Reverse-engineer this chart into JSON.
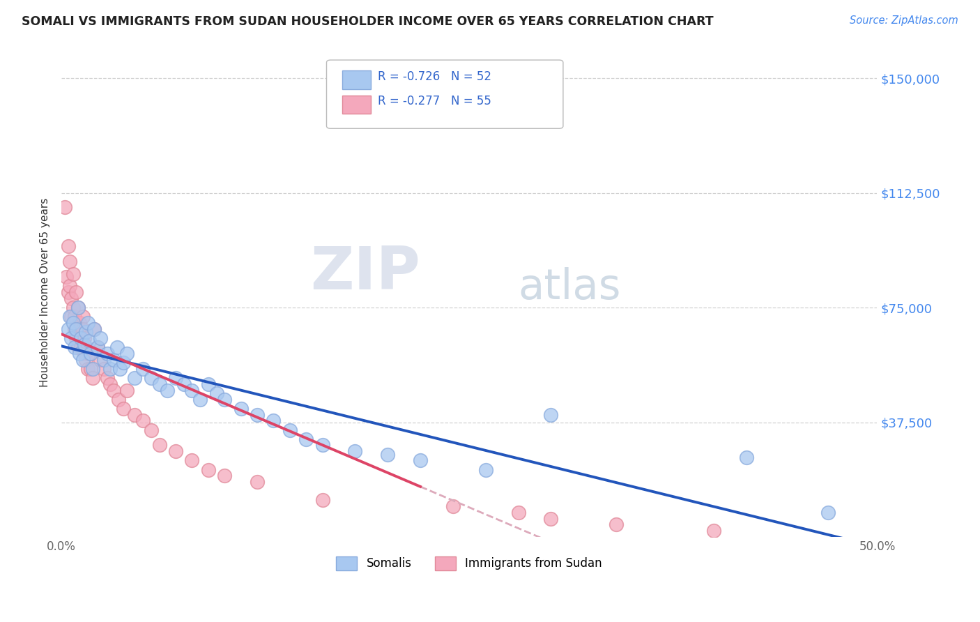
{
  "title": "SOMALI VS IMMIGRANTS FROM SUDAN HOUSEHOLDER INCOME OVER 65 YEARS CORRELATION CHART",
  "source": "Source: ZipAtlas.com",
  "ylabel": "Householder Income Over 65 years",
  "y_tick_labels": [
    "$150,000",
    "$112,500",
    "$75,000",
    "$37,500"
  ],
  "y_tick_values": [
    150000,
    112500,
    75000,
    37500
  ],
  "ylim": [
    0,
    160000
  ],
  "xlim": [
    0.0,
    0.5
  ],
  "legend_label1": "Somalis",
  "legend_label2": "Immigrants from Sudan",
  "r1": "-0.726",
  "n1": "52",
  "r2": "-0.277",
  "n2": "55",
  "watermark_zip": "ZIP",
  "watermark_atlas": "atlas",
  "somali_color": "#a8c8f0",
  "sudan_color": "#f4a8bc",
  "somali_edge_color": "#88aadd",
  "sudan_edge_color": "#e08898",
  "somali_line_color": "#2255bb",
  "sudan_line_color": "#dd4466",
  "sudan_dash_color": "#ddaabb",
  "somali_x": [
    0.004,
    0.005,
    0.006,
    0.007,
    0.008,
    0.009,
    0.01,
    0.011,
    0.012,
    0.013,
    0.014,
    0.015,
    0.016,
    0.017,
    0.018,
    0.019,
    0.02,
    0.022,
    0.024,
    0.026,
    0.028,
    0.03,
    0.032,
    0.034,
    0.036,
    0.038,
    0.04,
    0.045,
    0.05,
    0.055,
    0.06,
    0.065,
    0.07,
    0.075,
    0.08,
    0.085,
    0.09,
    0.095,
    0.1,
    0.11,
    0.12,
    0.13,
    0.14,
    0.15,
    0.16,
    0.18,
    0.2,
    0.22,
    0.26,
    0.3,
    0.42,
    0.47
  ],
  "somali_y": [
    68000,
    72000,
    65000,
    70000,
    62000,
    68000,
    75000,
    60000,
    65000,
    58000,
    63000,
    67000,
    70000,
    64000,
    60000,
    55000,
    68000,
    62000,
    65000,
    58000,
    60000,
    55000,
    58000,
    62000,
    55000,
    57000,
    60000,
    52000,
    55000,
    52000,
    50000,
    48000,
    52000,
    50000,
    48000,
    45000,
    50000,
    47000,
    45000,
    42000,
    40000,
    38000,
    35000,
    32000,
    30000,
    28000,
    27000,
    25000,
    22000,
    40000,
    26000,
    8000
  ],
  "sudan_x": [
    0.002,
    0.003,
    0.004,
    0.004,
    0.005,
    0.005,
    0.006,
    0.006,
    0.007,
    0.007,
    0.008,
    0.008,
    0.009,
    0.009,
    0.01,
    0.01,
    0.011,
    0.011,
    0.012,
    0.012,
    0.013,
    0.013,
    0.014,
    0.014,
    0.015,
    0.015,
    0.016,
    0.017,
    0.018,
    0.019,
    0.02,
    0.022,
    0.024,
    0.026,
    0.028,
    0.03,
    0.032,
    0.035,
    0.038,
    0.04,
    0.045,
    0.05,
    0.055,
    0.06,
    0.07,
    0.08,
    0.09,
    0.1,
    0.12,
    0.16,
    0.24,
    0.28,
    0.3,
    0.34,
    0.4
  ],
  "sudan_y": [
    108000,
    85000,
    95000,
    80000,
    90000,
    82000,
    78000,
    72000,
    86000,
    75000,
    68000,
    72000,
    65000,
    80000,
    75000,
    62000,
    70000,
    68000,
    65000,
    62000,
    72000,
    68000,
    65000,
    60000,
    62000,
    58000,
    55000,
    60000,
    55000,
    52000,
    68000,
    62000,
    58000,
    55000,
    52000,
    50000,
    48000,
    45000,
    42000,
    48000,
    40000,
    38000,
    35000,
    30000,
    28000,
    25000,
    22000,
    20000,
    18000,
    12000,
    10000,
    8000,
    6000,
    4000,
    2000
  ]
}
